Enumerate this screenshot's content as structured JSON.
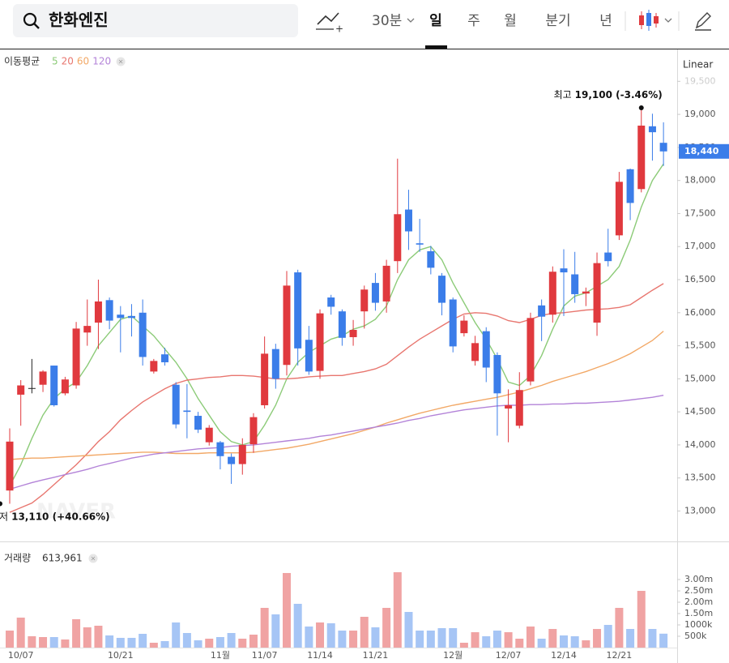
{
  "header": {
    "search": "한화엔진",
    "tabs": [
      "30분",
      "일",
      "주",
      "월",
      "분기",
      "년"
    ],
    "selected_tab": 1
  },
  "chart_data": {
    "type": "candlestick",
    "scale": "Linear",
    "categories": [
      null,
      "10/07",
      null,
      null,
      null,
      null,
      null,
      null,
      null,
      null,
      "10/21",
      null,
      null,
      null,
      null,
      null,
      null,
      null,
      null,
      "11월",
      null,
      null,
      null,
      "11/07",
      null,
      null,
      null,
      null,
      "11/14",
      null,
      null,
      null,
      null,
      "11/21",
      null,
      null,
      null,
      null,
      null,
      null,
      "12월",
      null,
      null,
      null,
      null,
      "12/07",
      null,
      null,
      null,
      null,
      "12/14",
      null,
      null,
      null,
      null,
      "12/21",
      null,
      null,
      null,
      null
    ],
    "open": [
      13310,
      14760,
      14860,
      14910,
      15200,
      14780,
      14900,
      15700,
      15850,
      16190,
      15970,
      15950,
      16000,
      15110,
      15370,
      14910,
      14520,
      14440,
      14040,
      14040,
      13820,
      13710,
      14010,
      14600,
      15450,
      15210,
      16610,
      15590,
      15120,
      16230,
      16020,
      15630,
      16020,
      16450,
      16170,
      16780,
      17560,
      17050,
      16930,
      16560,
      16200,
      15690,
      15270,
      15720,
      15360,
      14550,
      14290,
      14960,
      16110,
      15970,
      16670,
      16580,
      16290,
      15850,
      16910,
      17170,
      18170,
      17870,
      18820,
      18570
    ],
    "high": [
      14250,
      14980,
      15300,
      15130,
      15200,
      15030,
      15860,
      16200,
      16500,
      16230,
      16100,
      16130,
      16200,
      15300,
      15470,
      14950,
      14920,
      14500,
      14300,
      14060,
      13870,
      14100,
      14480,
      15640,
      15530,
      16630,
      16650,
      15800,
      16050,
      16270,
      16050,
      15890,
      16410,
      16600,
      16800,
      18330,
      17860,
      17420,
      17010,
      16600,
      16230,
      15960,
      15650,
      15780,
      15400,
      14840,
      15100,
      16000,
      16200,
      16700,
      16960,
      16920,
      16380,
      16910,
      17270,
      18130,
      18180,
      19100,
      19010,
      18880
    ],
    "low": [
      13110,
      14290,
      14780,
      14800,
      14580,
      14750,
      14850,
      15500,
      15450,
      15750,
      15400,
      15640,
      15200,
      15080,
      15200,
      14250,
      14100,
      14180,
      13990,
      13630,
      13410,
      13550,
      13880,
      14550,
      14850,
      15050,
      15200,
      15060,
      15000,
      15970,
      15500,
      15500,
      15760,
      16030,
      16000,
      16600,
      16950,
      16920,
      16580,
      15960,
      15400,
      15640,
      15200,
      14950,
      14140,
      14040,
      14250,
      14900,
      15570,
      15850,
      15950,
      16150,
      16100,
      15650,
      16700,
      17100,
      17400,
      17820,
      18300,
      18220
    ],
    "close": [
      14050,
      14900,
      14860,
      15110,
      14600,
      14990,
      15760,
      15800,
      16170,
      15880,
      15920,
      15920,
      15330,
      15270,
      15250,
      14310,
      14500,
      14230,
      14260,
      13830,
      13710,
      14000,
      14420,
      15380,
      15000,
      16410,
      15460,
      15110,
      15990,
      16090,
      15620,
      15740,
      16350,
      16150,
      16710,
      17490,
      17230,
      17030,
      16680,
      16150,
      15490,
      15880,
      15540,
      15170,
      14780,
      14600,
      14830,
      15920,
      15940,
      16620,
      16610,
      16280,
      16320,
      16750,
      16780,
      17980,
      17660,
      18830,
      18730,
      18440
    ],
    "up_color": "#e0393e",
    "down_color": "#3b7de9",
    "flat_color": "#222222",
    "last_label": "18,440",
    "ylim": [
      12540,
      19970
    ],
    "yticks": [
      {
        "value": 13000,
        "label": "13,000"
      },
      {
        "value": 13500,
        "label": "13,500"
      },
      {
        "value": 14000,
        "label": "14,000"
      },
      {
        "value": 14500,
        "label": "14,500"
      },
      {
        "value": 15000,
        "label": "15,000"
      },
      {
        "value": 15500,
        "label": "15,500"
      },
      {
        "value": 16000,
        "label": "16,000"
      },
      {
        "value": 16500,
        "label": "16,500"
      },
      {
        "value": 17000,
        "label": "17,000"
      },
      {
        "value": 17500,
        "label": "17,500"
      },
      {
        "value": 18000,
        "label": "18,000"
      },
      {
        "value": 18500,
        "label": "18,500"
      },
      {
        "value": 19000,
        "label": "19,000"
      },
      {
        "value": 19500,
        "label": "19,500"
      }
    ],
    "annotations": [
      {
        "label": "최고",
        "text": "19,100 (-3.46%)",
        "value": 19100
      },
      {
        "label": "최저",
        "text": "13,110 (+40.66%)",
        "value": 13110
      }
    ],
    "watermark": "NAVER",
    "ma_label": "이동평균",
    "ma": [
      {
        "name": "5",
        "color": "#8ccb78",
        "values": [
          13380,
          13700,
          14100,
          14450,
          14700,
          14850,
          14950,
          15200,
          15500,
          15700,
          15900,
          15950,
          15800,
          15650,
          15450,
          15250,
          15000,
          14700,
          14450,
          14200,
          14050,
          14000,
          14050,
          14300,
          14600,
          15000,
          15250,
          15400,
          15500,
          15600,
          15650,
          15750,
          15800,
          15900,
          16100,
          16500,
          16800,
          16950,
          17000,
          16800,
          16450,
          16150,
          15850,
          15600,
          15300,
          14950,
          14900,
          15050,
          15350,
          15750,
          16100,
          16250,
          16300,
          16400,
          16500,
          16700,
          17100,
          17600,
          18000,
          18250
        ]
      },
      {
        "name": "20",
        "color": "#e8766f",
        "values": [
          12980,
          13050,
          13120,
          13250,
          13400,
          13550,
          13700,
          13870,
          14050,
          14200,
          14380,
          14520,
          14650,
          14750,
          14850,
          14930,
          14980,
          15000,
          15020,
          15030,
          15050,
          15050,
          15040,
          15020,
          15000,
          15000,
          15010,
          15030,
          15040,
          15050,
          15050,
          15080,
          15110,
          15150,
          15220,
          15350,
          15480,
          15600,
          15700,
          15800,
          15900,
          15980,
          16000,
          15990,
          15950,
          15880,
          15850,
          15900,
          15960,
          15990,
          16000,
          16020,
          16040,
          16050,
          16060,
          16080,
          16120,
          16230,
          16340,
          16440
        ]
      },
      {
        "name": "60",
        "color": "#f2a866",
        "values": [
          13780,
          13790,
          13800,
          13800,
          13810,
          13820,
          13830,
          13840,
          13850,
          13860,
          13870,
          13880,
          13890,
          13890,
          13880,
          13870,
          13870,
          13870,
          13880,
          13880,
          13880,
          13880,
          13890,
          13910,
          13930,
          13950,
          13980,
          14010,
          14050,
          14090,
          14130,
          14170,
          14220,
          14270,
          14330,
          14380,
          14430,
          14480,
          14520,
          14560,
          14600,
          14630,
          14660,
          14690,
          14720,
          14760,
          14800,
          14850,
          14900,
          14960,
          15010,
          15060,
          15110,
          15170,
          15230,
          15300,
          15380,
          15480,
          15580,
          15720
        ]
      },
      {
        "name": "120",
        "color": "#b383d8",
        "values": [
          13330,
          13380,
          13430,
          13470,
          13510,
          13550,
          13590,
          13630,
          13680,
          13720,
          13760,
          13800,
          13830,
          13860,
          13880,
          13900,
          13920,
          13940,
          13950,
          13960,
          13980,
          13990,
          14000,
          14020,
          14040,
          14060,
          14080,
          14100,
          14130,
          14150,
          14180,
          14210,
          14240,
          14270,
          14300,
          14330,
          14370,
          14400,
          14440,
          14470,
          14500,
          14530,
          14550,
          14570,
          14590,
          14600,
          14600,
          14610,
          14610,
          14620,
          14620,
          14630,
          14630,
          14640,
          14650,
          14660,
          14680,
          14700,
          14720,
          14750
        ]
      }
    ],
    "volume": {
      "name": "거래량",
      "latest_label": "613,961",
      "up_color": "#f0a3a3",
      "down_color": "#a6c5f5",
      "values": [
        750000,
        1321000,
        500000,
        464000,
        464000,
        357000,
        1250000,
        893000,
        964000,
        536000,
        429000,
        429000,
        607000,
        214000,
        286000,
        1107000,
        643000,
        321000,
        393000,
        464000,
        643000,
        393000,
        571000,
        1750000,
        1464000,
        3286000,
        1929000,
        929000,
        1107000,
        1071000,
        750000,
        750000,
        1357000,
        893000,
        1750000,
        3321000,
        1571000,
        750000,
        750000,
        857000,
        857000,
        214000,
        679000,
        500000,
        750000,
        679000,
        393000,
        929000,
        393000,
        821000,
        536000,
        500000,
        321000,
        821000,
        1000000,
        1750000,
        821000,
        2500000,
        821000,
        613961
      ],
      "ylim": [
        0,
        4535000
      ],
      "yticks": [
        {
          "value": 500000,
          "label": "500k"
        },
        {
          "value": 1000000,
          "label": "1000k"
        },
        {
          "value": 1500000,
          "label": "1.50m"
        },
        {
          "value": 2000000,
          "label": "2.00m"
        },
        {
          "value": 2500000,
          "label": "2.50m"
        },
        {
          "value": 3000000,
          "label": "3.00m"
        }
      ]
    }
  }
}
